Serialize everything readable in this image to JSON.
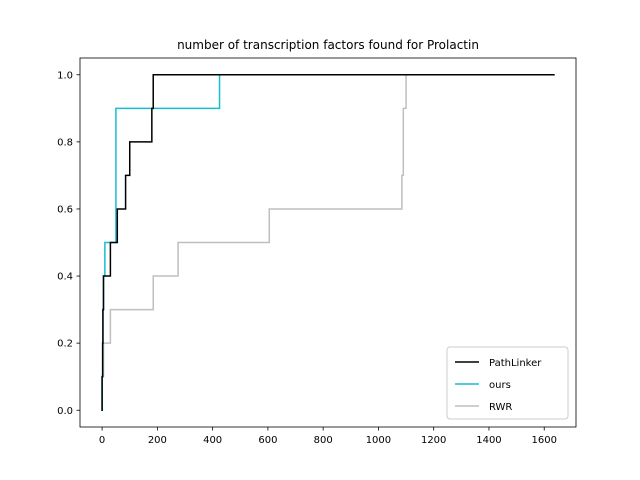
{
  "chart_data": {
    "type": "line",
    "title": "number of transcription factors found for Prolactin",
    "xlabel": "",
    "ylabel": "",
    "xlim": [
      -80,
      1715
    ],
    "ylim": [
      -0.05,
      1.05
    ],
    "x_ticks": [
      0,
      200,
      400,
      600,
      800,
      1000,
      1200,
      1400,
      1600
    ],
    "y_ticks": [
      0.0,
      0.2,
      0.4,
      0.6,
      0.8,
      1.0
    ],
    "x_tick_labels": [
      "0",
      "200",
      "400",
      "600",
      "800",
      "1000",
      "1200",
      "1400",
      "1600"
    ],
    "y_tick_labels": [
      "0.0",
      "0.2",
      "0.4",
      "0.6",
      "0.8",
      "1.0"
    ],
    "grid": false,
    "legend_position": "lower-right",
    "series": [
      {
        "name": "PathLinker",
        "color": "#000000",
        "step": true,
        "points": [
          [
            0,
            0.0
          ],
          [
            0,
            0.1
          ],
          [
            2,
            0.2
          ],
          [
            3,
            0.3
          ],
          [
            5,
            0.4
          ],
          [
            30,
            0.5
          ],
          [
            55,
            0.6
          ],
          [
            85,
            0.7
          ],
          [
            100,
            0.8
          ],
          [
            180,
            0.9
          ],
          [
            185,
            1.0
          ],
          [
            1635,
            1.0
          ]
        ]
      },
      {
        "name": "ours",
        "color": "#17becf",
        "step": true,
        "points": [
          [
            0,
            0.0
          ],
          [
            0,
            0.1
          ],
          [
            2,
            0.2
          ],
          [
            3,
            0.3
          ],
          [
            5,
            0.4
          ],
          [
            10,
            0.5
          ],
          [
            40,
            0.5
          ],
          [
            50,
            0.9
          ],
          [
            425,
            1.0
          ],
          [
            1635,
            1.0
          ]
        ]
      },
      {
        "name": "RWR",
        "color": "#bfbfbf",
        "step": true,
        "points": [
          [
            0,
            0.0
          ],
          [
            0,
            0.1
          ],
          [
            5,
            0.2
          ],
          [
            30,
            0.3
          ],
          [
            185,
            0.4
          ],
          [
            275,
            0.5
          ],
          [
            605,
            0.6
          ],
          [
            1085,
            0.7
          ],
          [
            1090,
            0.9
          ],
          [
            1100,
            1.0
          ],
          [
            1635,
            1.0
          ]
        ]
      }
    ]
  }
}
